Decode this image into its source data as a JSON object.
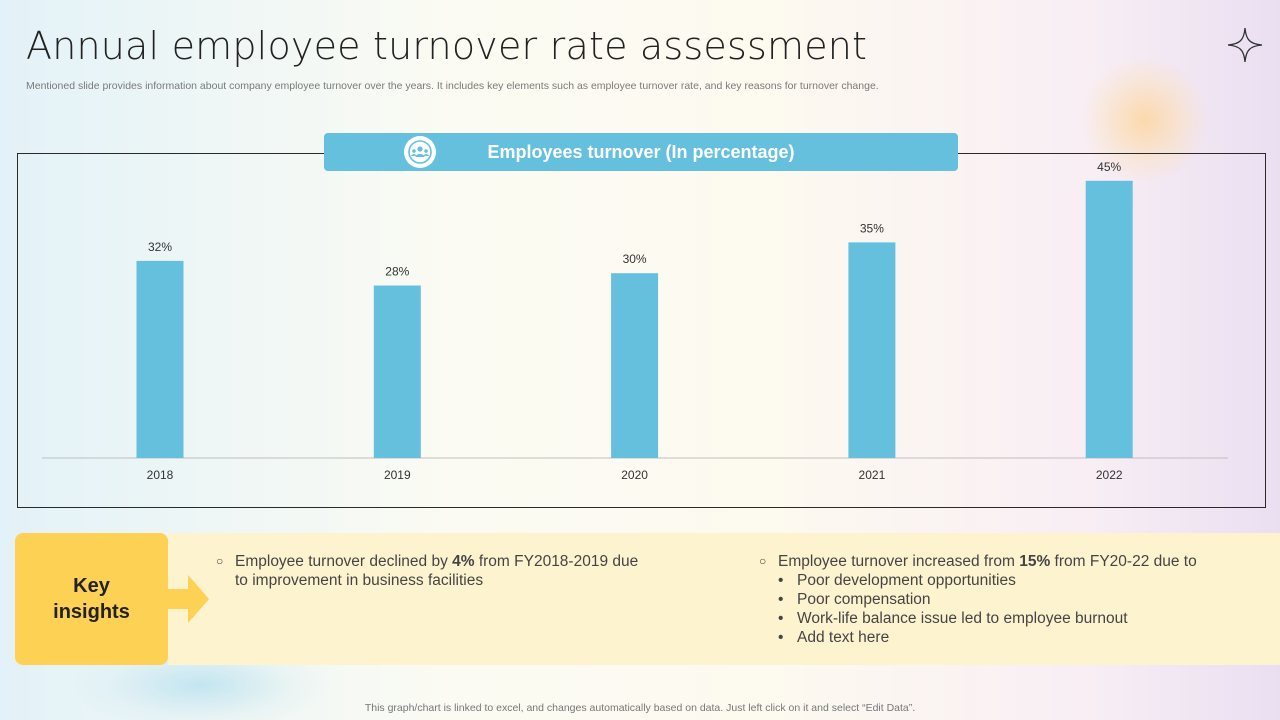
{
  "slide": {
    "title": "Annual employee turnover rate assessment",
    "subtitle": "Mentioned slide provides information about company employee turnover over the years. It includes key elements such as employee turnover rate, and key reasons for turnover change.",
    "footer": "This graph/chart is linked to excel, and changes automatically based on data. Just left click on it and select “Edit Data”."
  },
  "chart_banner": {
    "title": "Employees turnover (In percentage)",
    "icon": "team-icon"
  },
  "chart_data": {
    "type": "bar",
    "title": "Employees turnover (In percentage)",
    "categories": [
      "2018",
      "2019",
      "2020",
      "2021",
      "2022"
    ],
    "values": [
      32,
      28,
      30,
      35,
      45
    ],
    "data_labels": [
      "32%",
      "28%",
      "30%",
      "35%",
      "45%"
    ],
    "ylim": [
      0,
      50
    ],
    "grid": false,
    "legend": "none",
    "bar_color": "#65c0de"
  },
  "insights": {
    "label": "Key insights",
    "left": {
      "pre": "Employee turnover  declined by ",
      "bold": "4%",
      "post": " from FY2018-2019 due to improvement in business facilities"
    },
    "right": {
      "pre": "Employee turnover  increased from ",
      "bold": "15%",
      "post": " from FY20-22 due to",
      "bullets": [
        "Poor development opportunities",
        "Poor compensation",
        "Work-life balance issue led to employee burnout",
        "Add text here"
      ]
    }
  },
  "colors": {
    "accent_blue": "#65c0de",
    "insight_yellow": "#fdd154",
    "insight_band": "#fef3cf"
  }
}
